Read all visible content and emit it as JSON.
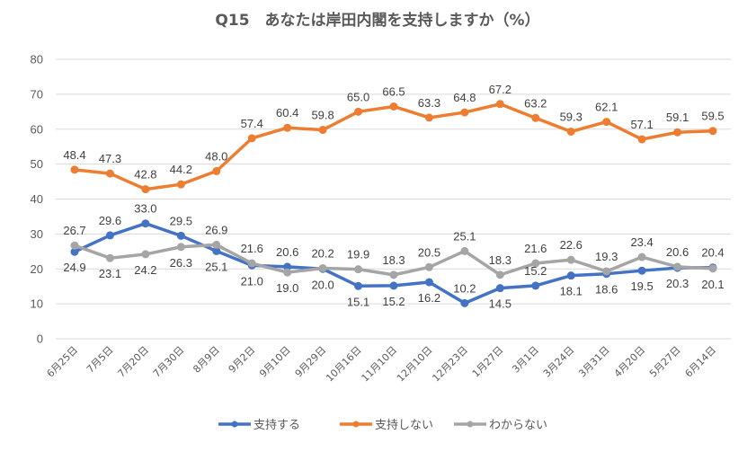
{
  "chart_data": {
    "type": "line",
    "title": "Q15　あなたは岸田内閣を支持しますか（%）",
    "xlabel": "",
    "ylabel": "",
    "ylim": [
      0,
      80
    ],
    "yticks": [
      0,
      10,
      20,
      30,
      40,
      50,
      60,
      70,
      80
    ],
    "grid": true,
    "legend_position": "bottom",
    "categories": [
      "6月25日",
      "7月5日",
      "7月20日",
      "7月30日",
      "8月9日",
      "9月2日",
      "9月10日",
      "9月29日",
      "10月16日",
      "11月10日",
      "12月10日",
      "12月23日",
      "1月27日",
      "3月1日",
      "3月24日",
      "3月31日",
      "4月20日",
      "5月27日",
      "6月14日"
    ],
    "series": [
      {
        "name": "支持する",
        "color": "#4472c4",
        "label_side": [
          "below",
          "above",
          "above",
          "above",
          "below",
          "below",
          "above",
          "below",
          "below",
          "below",
          "below",
          "above",
          "below",
          "above",
          "below",
          "below",
          "below",
          "below",
          "above"
        ],
        "values": [
          24.9,
          29.6,
          33.0,
          29.5,
          25.1,
          21.0,
          20.6,
          20.0,
          15.1,
          15.2,
          16.2,
          10.2,
          14.5,
          15.2,
          18.1,
          18.6,
          19.5,
          20.3,
          20.4
        ]
      },
      {
        "name": "支持しない",
        "color": "#ed7d31",
        "label_side": [
          "above",
          "above",
          "above",
          "above",
          "above",
          "above",
          "above",
          "above",
          "above",
          "above",
          "above",
          "above",
          "above",
          "above",
          "above",
          "above",
          "above",
          "above",
          "above"
        ],
        "values": [
          48.4,
          47.3,
          42.8,
          44.2,
          48.0,
          57.4,
          60.4,
          59.8,
          65.0,
          66.5,
          63.3,
          64.8,
          67.2,
          63.2,
          59.3,
          62.1,
          57.1,
          59.1,
          59.5
        ]
      },
      {
        "name": "わからない",
        "color": "#a5a5a5",
        "label_side": [
          "above",
          "below",
          "below",
          "below",
          "above",
          "above",
          "below",
          "above",
          "above",
          "above",
          "above",
          "above",
          "above",
          "above",
          "above",
          "above",
          "above",
          "above",
          "below"
        ],
        "values": [
          26.7,
          23.1,
          24.2,
          26.3,
          26.9,
          21.6,
          19.0,
          20.2,
          19.9,
          18.3,
          20.5,
          25.1,
          18.3,
          21.6,
          22.6,
          19.3,
          23.4,
          20.6,
          20.1
        ]
      }
    ]
  }
}
